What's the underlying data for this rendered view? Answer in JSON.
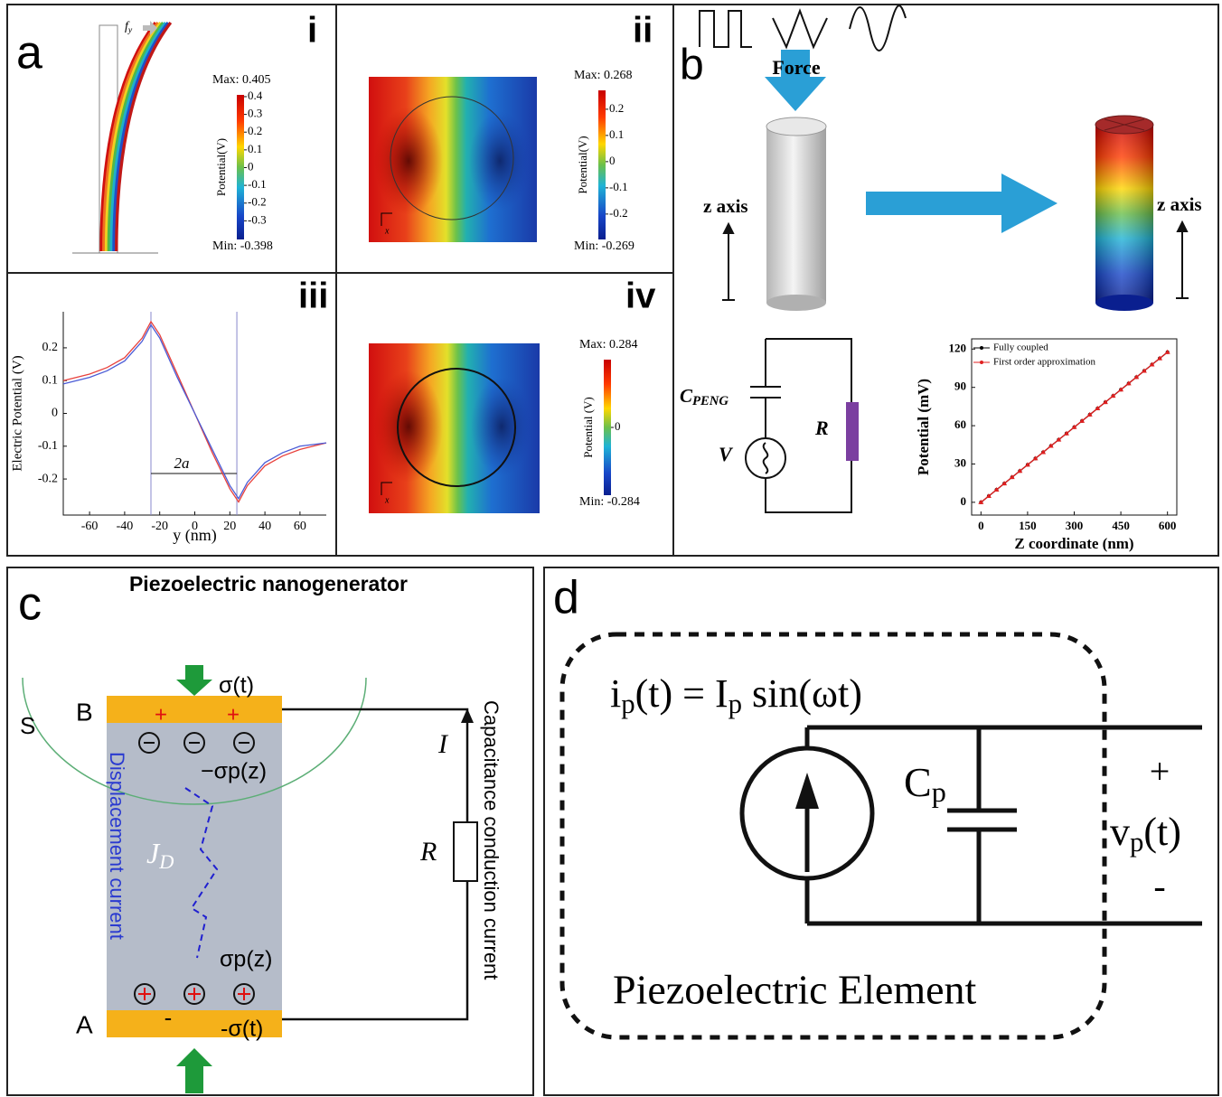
{
  "chart_data": [
    {
      "type": "line",
      "x_label": "y (nm)",
      "y_label": "Electric Potential (V)",
      "annotation": "2a",
      "x": [
        -75,
        -60,
        -50,
        -40,
        -30,
        -25,
        -20,
        -10,
        0,
        10,
        20,
        25,
        30,
        40,
        50,
        60,
        75
      ],
      "series": [
        {
          "color": "#e8413c",
          "values": [
            0.1,
            0.12,
            0.14,
            0.17,
            0.23,
            0.28,
            0.24,
            0.12,
            0,
            -0.12,
            -0.23,
            -0.27,
            -0.22,
            -0.16,
            -0.13,
            -0.11,
            -0.09
          ]
        },
        {
          "color": "#4a5bd6",
          "values": [
            0.09,
            0.11,
            0.13,
            0.16,
            0.22,
            0.27,
            0.23,
            0.11,
            0,
            -0.11,
            -0.22,
            -0.26,
            -0.21,
            -0.15,
            -0.12,
            -0.1,
            -0.09
          ]
        }
      ],
      "vlines": [
        -25,
        24
      ],
      "xlim": [
        -75,
        75
      ],
      "ylim": [
        -0.31,
        0.31
      ],
      "xticks": [
        -60,
        -40,
        -20,
        0,
        20,
        40,
        60
      ],
      "yticks": [
        -0.2,
        -0.1,
        0,
        0.1,
        0.2
      ]
    },
    {
      "type": "line",
      "x_label": "Z coordinate (nm)",
      "y_label": "Potential (mV)",
      "legend": "upper left",
      "x": [
        0,
        25,
        50,
        75,
        100,
        125,
        150,
        175,
        200,
        225,
        250,
        275,
        300,
        325,
        350,
        375,
        400,
        425,
        450,
        475,
        500,
        525,
        550,
        575,
        600
      ],
      "series": [
        {
          "name": "Fully coupled",
          "color": "#000000",
          "marker": "circle",
          "values": [
            0,
            4.9,
            9.8,
            14.7,
            19.6,
            24.5,
            29.4,
            34.3,
            39.2,
            44.1,
            49,
            53.9,
            58.8,
            63.7,
            68.6,
            73.5,
            78.4,
            83.3,
            88.2,
            93.1,
            98,
            102.9,
            107.8,
            112.7,
            117.6
          ]
        },
        {
          "name": "First order approximation",
          "color": "#e02020",
          "marker": "triangle",
          "values": [
            0,
            4.9,
            9.8,
            14.7,
            19.6,
            24.5,
            29.4,
            34.3,
            39.2,
            44.1,
            49,
            53.9,
            58.8,
            63.7,
            68.6,
            73.5,
            78.4,
            83.3,
            88.2,
            93.1,
            98,
            102.9,
            107.8,
            112.7,
            117.6
          ]
        }
      ],
      "xlim": [
        -30,
        630
      ],
      "ylim": [
        -10,
        128
      ],
      "xticks": [
        0,
        150,
        300,
        450,
        600
      ],
      "yticks": [
        0,
        30,
        60,
        90,
        120
      ],
      "frame": true
    }
  ],
  "panels": {
    "a": {
      "label": "a",
      "i": {
        "label": "i",
        "force": "f",
        "force_sub": "y",
        "colorbar": {
          "title": "Potential(V)",
          "max": "Max: 0.405",
          "min": "Min: -0.398",
          "ylim": [
            -0.405,
            0.41
          ],
          "ticks": [
            0.4,
            0.3,
            0.2,
            0.1,
            0,
            -0.1,
            -0.2,
            -0.3
          ]
        }
      },
      "ii": {
        "label": "ii",
        "axis": "x",
        "colorbar": {
          "title": "Potential(V)",
          "max": "Max: 0.268",
          "min": "Min: -0.269",
          "ylim": [
            -0.297,
            0.272
          ],
          "ticks": [
            0.2,
            0.1,
            0,
            -0.1,
            -0.2
          ]
        }
      },
      "iii": {
        "label": "iii"
      },
      "iv": {
        "label": "iv",
        "axis": "x",
        "colorbar": {
          "title": "Potential (V)",
          "max": "Max: 0.284",
          "min": "Min: -0.284",
          "ylim": [
            -0.284,
            0.284
          ],
          "ticks": [
            0
          ]
        }
      }
    },
    "b": {
      "label": "b",
      "force": "Force",
      "z_axis_left": "z axis",
      "z_axis_right": "z axis",
      "cap": "C",
      "cap_sub": "PENG",
      "source": "V",
      "resistor": "R"
    },
    "c": {
      "label": "c",
      "title": "Piezoelectric nanogenerator",
      "surface": "S",
      "top_electrode": "B",
      "bottom_electrode": "A",
      "top_plus": [
        "+",
        "+"
      ],
      "top_charge": "σ(t)",
      "neg_polarization": "−σp(z)",
      "displacement": "Displacement current",
      "jd": "J",
      "jd_sub": "D",
      "pos_polarization": "σp(z)",
      "bottom_minus": "-",
      "bottom_charge": "-σ(t)",
      "current": "I",
      "resistor": "R",
      "conduction": "Capacitance conduction current"
    },
    "d": {
      "label": "d",
      "eq_i": "i",
      "eq_i_sub": "p",
      "eq_mid": "(t) = I",
      "eq_I_sub": "p",
      "eq_end": " sin(ωt)",
      "cap": "C",
      "cap_sub": "p",
      "plus": "+",
      "v": "v",
      "v_sub": "p",
      "v_end": "(t)",
      "minus": "-",
      "element": "Piezoelectric Element"
    }
  }
}
